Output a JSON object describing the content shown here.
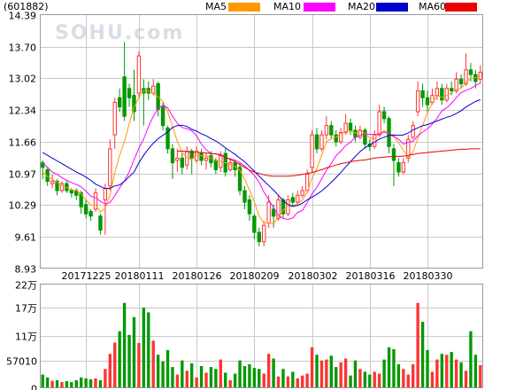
{
  "header": {
    "symbol": "(601882)",
    "legend": [
      {
        "label": "MA5",
        "color": "#ff9900"
      },
      {
        "label": "MA10",
        "color": "#ff00ff"
      },
      {
        "label": "MA20",
        "color": "#0000cc"
      },
      {
        "label": "MA60",
        "color": "#ee0000"
      }
    ]
  },
  "watermark": "SOHU.com",
  "colors": {
    "up": "#ff3333",
    "down": "#009900"
  },
  "chart_data": [
    {
      "type": "candlestick",
      "title": "",
      "ylim": [
        8.93,
        14.39
      ],
      "y_ticks": [
        "14.39",
        "13.70",
        "13.02",
        "12.34",
        "11.66",
        "10.97",
        "10.29",
        "9.61",
        "8.93"
      ],
      "x_ticks": [
        "20171225",
        "20180111",
        "20180126",
        "20180209",
        "20180302",
        "20180316",
        "20180330"
      ],
      "x_tick_index": [
        9,
        20,
        32,
        44,
        56,
        68,
        80
      ],
      "candles": [
        [
          11.2,
          11.1,
          11.25,
          10.85
        ],
        [
          11.05,
          10.8,
          11.1,
          10.7
        ],
        [
          10.75,
          10.8,
          10.95,
          10.65
        ],
        [
          10.8,
          10.6,
          10.85,
          10.5
        ],
        [
          10.6,
          10.75,
          10.8,
          10.55
        ],
        [
          10.75,
          10.6,
          10.8,
          10.55
        ],
        [
          10.6,
          10.55,
          10.65,
          10.45
        ],
        [
          10.6,
          10.5,
          10.65,
          10.4
        ],
        [
          10.55,
          10.25,
          10.6,
          10.1
        ],
        [
          10.3,
          10.1,
          10.4,
          10.0
        ],
        [
          10.15,
          10.05,
          10.2,
          9.95
        ],
        [
          10.2,
          10.55,
          10.65,
          10.15
        ],
        [
          10.05,
          9.75,
          10.1,
          9.65
        ],
        [
          10.4,
          10.65,
          10.75,
          9.65
        ],
        [
          10.7,
          11.5,
          11.7,
          10.6
        ],
        [
          11.8,
          12.5,
          12.6,
          11.5
        ],
        [
          12.6,
          12.4,
          12.8,
          12.3
        ],
        [
          13.05,
          12.2,
          13.8,
          12.1
        ],
        [
          12.8,
          12.6,
          12.9,
          12.4
        ],
        [
          12.65,
          12.3,
          13.2,
          12.1
        ],
        [
          12.7,
          13.5,
          13.6,
          12.6
        ],
        [
          12.8,
          12.7,
          13.0,
          12.0
        ],
        [
          12.8,
          12.7,
          12.95,
          12.55
        ],
        [
          12.7,
          12.85,
          13.0,
          12.65
        ],
        [
          12.9,
          12.35,
          12.95,
          12.2
        ],
        [
          12.4,
          12.0,
          12.5,
          11.9
        ],
        [
          11.95,
          11.5,
          12.0,
          11.4
        ],
        [
          11.5,
          11.2,
          11.6,
          10.85
        ],
        [
          11.25,
          11.3,
          11.5,
          11.0
        ],
        [
          11.3,
          11.1,
          11.45,
          10.95
        ],
        [
          11.15,
          11.45,
          11.55,
          11.05
        ],
        [
          11.45,
          11.3,
          11.5,
          10.95
        ],
        [
          11.25,
          11.45,
          11.55,
          11.2
        ],
        [
          11.4,
          11.25,
          11.5,
          11.15
        ],
        [
          11.25,
          11.3,
          11.4,
          11.05
        ],
        [
          11.35,
          11.2,
          11.45,
          11.1
        ],
        [
          11.25,
          11.05,
          11.3,
          10.95
        ],
        [
          11.1,
          11.35,
          11.45,
          11.0
        ],
        [
          11.4,
          11.0,
          11.5,
          10.9
        ],
        [
          11.05,
          11.2,
          11.3,
          11.0
        ],
        [
          11.2,
          11.05,
          11.25,
          10.9
        ],
        [
          11.1,
          10.6,
          11.2,
          10.5
        ],
        [
          10.6,
          10.35,
          10.7,
          10.2
        ],
        [
          10.4,
          10.1,
          10.5,
          9.95
        ],
        [
          10.05,
          9.7,
          10.1,
          9.55
        ],
        [
          9.7,
          9.5,
          9.8,
          9.4
        ],
        [
          9.5,
          9.85,
          9.95,
          9.4
        ],
        [
          9.9,
          10.35,
          10.5,
          9.8
        ],
        [
          10.2,
          10.05,
          10.3,
          9.8
        ],
        [
          10.0,
          10.4,
          10.5,
          9.95
        ],
        [
          10.4,
          10.1,
          10.45,
          10.0
        ],
        [
          10.1,
          10.4,
          10.5,
          10.05
        ],
        [
          10.45,
          10.35,
          10.55,
          10.25
        ],
        [
          10.35,
          10.5,
          10.6,
          10.3
        ],
        [
          10.5,
          10.6,
          10.7,
          10.45
        ],
        [
          10.6,
          10.95,
          11.05,
          10.55
        ],
        [
          11.1,
          11.8,
          11.9,
          11.0
        ],
        [
          11.8,
          11.5,
          11.95,
          11.4
        ],
        [
          11.5,
          11.8,
          11.9,
          11.45
        ],
        [
          11.8,
          12.0,
          12.2,
          11.7
        ],
        [
          12.0,
          11.8,
          12.1,
          11.7
        ],
        [
          11.8,
          11.65,
          11.9,
          11.55
        ],
        [
          11.65,
          11.85,
          11.95,
          11.6
        ],
        [
          11.85,
          12.05,
          12.25,
          11.8
        ],
        [
          12.05,
          11.9,
          12.15,
          11.8
        ],
        [
          11.9,
          11.75,
          12.0,
          11.65
        ],
        [
          11.75,
          11.9,
          12.0,
          11.7
        ],
        [
          11.9,
          11.6,
          11.95,
          11.5
        ],
        [
          11.6,
          11.55,
          11.7,
          11.45
        ],
        [
          11.55,
          11.8,
          11.9,
          11.5
        ],
        [
          11.8,
          12.3,
          12.45,
          11.75
        ],
        [
          12.3,
          12.15,
          12.4,
          12.05
        ],
        [
          12.15,
          11.55,
          12.2,
          11.4
        ],
        [
          11.5,
          11.25,
          11.6,
          10.7
        ],
        [
          11.2,
          11.0,
          11.3,
          10.9
        ],
        [
          11.0,
          11.2,
          11.3,
          10.95
        ],
        [
          11.3,
          11.7,
          11.8,
          11.2
        ],
        [
          11.75,
          12.0,
          12.1,
          11.7
        ],
        [
          12.3,
          12.75,
          12.95,
          12.2
        ],
        [
          12.75,
          12.6,
          12.9,
          12.4
        ],
        [
          12.6,
          12.45,
          12.75,
          12.3
        ],
        [
          12.5,
          12.65,
          12.8,
          12.45
        ],
        [
          12.65,
          12.8,
          12.95,
          12.55
        ],
        [
          12.8,
          12.55,
          12.9,
          12.45
        ],
        [
          12.55,
          12.8,
          12.9,
          12.5
        ],
        [
          12.8,
          12.75,
          12.95,
          12.65
        ],
        [
          12.75,
          13.0,
          13.15,
          12.7
        ],
        [
          13.0,
          12.9,
          13.1,
          12.8
        ],
        [
          12.9,
          13.2,
          13.55,
          12.85
        ],
        [
          13.2,
          13.1,
          13.35,
          12.95
        ],
        [
          13.1,
          12.95,
          13.2,
          12.8
        ],
        [
          13.0,
          13.15,
          13.3,
          12.9
        ]
      ],
      "ma5": [
        11.0,
        10.9,
        10.85,
        10.78,
        10.71,
        10.66,
        10.62,
        10.6,
        10.53,
        10.4,
        10.29,
        10.29,
        10.14,
        10.22,
        10.5,
        10.99,
        11.36,
        11.66,
        12.04,
        12.4,
        12.6,
        12.76,
        12.74,
        12.7,
        12.62,
        12.52,
        12.29,
        11.98,
        11.66,
        11.42,
        11.31,
        11.27,
        11.36,
        11.35,
        11.35,
        11.3,
        11.25,
        11.23,
        11.2,
        11.16,
        11.12,
        11.04,
        10.84,
        10.61,
        10.36,
        10.05,
        9.9,
        9.9,
        9.89,
        10.03,
        10.18,
        10.27,
        10.26,
        10.32,
        10.4,
        10.56,
        10.87,
        11.07,
        11.36,
        11.65,
        11.72,
        11.75,
        11.83,
        11.87,
        11.89,
        11.84,
        11.89,
        11.84,
        11.73,
        11.72,
        11.84,
        11.89,
        11.83,
        11.78,
        11.63,
        11.47,
        11.33,
        11.43,
        11.73,
        12.01,
        12.28,
        12.49,
        12.65,
        12.61,
        12.65,
        12.71,
        12.78,
        12.8,
        12.93,
        13.02,
        13.03,
        13.07
      ],
      "ma10": [
        11.2,
        11.1,
        11.0,
        10.95,
        10.88,
        10.82,
        10.77,
        10.73,
        10.68,
        10.59,
        10.48,
        10.45,
        10.37,
        10.31,
        10.34,
        10.49,
        10.66,
        10.81,
        11.0,
        11.27,
        11.51,
        11.71,
        11.98,
        12.2,
        12.37,
        12.44,
        12.38,
        12.2,
        12.05,
        11.96,
        11.93,
        11.89,
        11.78,
        11.6,
        11.48,
        11.39,
        11.39,
        11.38,
        11.32,
        11.28,
        11.26,
        11.2,
        11.13,
        11.03,
        10.93,
        10.78,
        10.57,
        10.4,
        10.23,
        10.07,
        10.0,
        9.98,
        10.01,
        10.13,
        10.17,
        10.34,
        10.53,
        10.67,
        10.85,
        11.04,
        11.18,
        11.35,
        11.45,
        11.57,
        11.64,
        11.75,
        11.79,
        11.82,
        11.81,
        11.81,
        11.81,
        11.86,
        11.83,
        11.76,
        11.71,
        11.6,
        11.64,
        11.66,
        11.78,
        11.86,
        11.93,
        12.03,
        12.16,
        12.32,
        12.38,
        12.48,
        12.6,
        12.71,
        12.76,
        12.8,
        12.86,
        12.92
      ],
      "ma20": [
        11.42,
        11.36,
        11.3,
        11.24,
        11.18,
        11.12,
        11.06,
        11.0,
        10.95,
        10.89,
        10.82,
        10.74,
        10.69,
        10.64,
        10.65,
        10.7,
        10.72,
        10.8,
        10.9,
        11.0,
        11.2,
        11.36,
        11.5,
        11.62,
        11.72,
        11.79,
        11.86,
        11.96,
        12.0,
        12.01,
        11.98,
        11.92,
        11.88,
        11.82,
        11.78,
        11.72,
        11.67,
        11.6,
        11.52,
        11.45,
        11.38,
        11.3,
        11.22,
        11.12,
        11.02,
        10.91,
        10.81,
        10.71,
        10.61,
        10.5,
        10.38,
        10.3,
        10.26,
        10.28,
        10.33,
        10.4,
        10.46,
        10.52,
        10.59,
        10.68,
        10.78,
        10.88,
        10.99,
        11.11,
        11.22,
        11.34,
        11.44,
        11.52,
        11.59,
        11.64,
        11.71,
        11.75,
        11.79,
        11.8,
        11.79,
        11.8,
        11.84,
        11.91,
        11.95,
        12.0,
        12.02,
        12.06,
        12.1,
        12.14,
        12.18,
        12.21,
        12.26,
        12.32,
        12.4,
        12.46,
        12.52,
        12.56
      ],
      "ma60": [
        null,
        null,
        null,
        null,
        null,
        null,
        null,
        null,
        null,
        null,
        null,
        null,
        null,
        null,
        null,
        null,
        null,
        null,
        null,
        null,
        null,
        null,
        null,
        null,
        null,
        null,
        null,
        null,
        11.45,
        11.45,
        11.44,
        11.43,
        11.42,
        11.42,
        11.41,
        11.4,
        11.39,
        11.36,
        11.32,
        11.27,
        11.22,
        11.16,
        11.1,
        11.04,
        11.0,
        10.97,
        10.94,
        10.92,
        10.91,
        10.91,
        10.91,
        10.91,
        10.92,
        10.93,
        10.95,
        10.97,
        10.99,
        11.02,
        11.05,
        11.09,
        11.12,
        11.15,
        11.18,
        11.2,
        11.22,
        11.24,
        11.25,
        11.26,
        11.28,
        11.3,
        11.31,
        11.32,
        11.33,
        11.33,
        11.34,
        11.34,
        11.36,
        11.38,
        11.4,
        11.41,
        11.42,
        11.43,
        11.44,
        11.45,
        11.46,
        11.47,
        11.48,
        11.49,
        11.49,
        11.5,
        11.5,
        11.5
      ]
    },
    {
      "type": "bar",
      "title": "",
      "ylim": [
        0,
        220000
      ],
      "y_ticks": [
        {
          "label": "22万",
          "value": 220000
        },
        {
          "label": "17万",
          "value": 170000
        },
        {
          "label": "11万",
          "value": 110000
        },
        {
          "label": "57010",
          "value": 57010
        },
        {
          "label": "0",
          "value": 0
        }
      ],
      "values": [
        28000,
        22000,
        15000,
        16000,
        12000,
        14000,
        12000,
        16000,
        22000,
        20000,
        18000,
        20000,
        16000,
        40000,
        72000,
        96000,
        120000,
        180000,
        112000,
        150000,
        95000,
        170000,
        160000,
        100000,
        70000,
        56000,
        80000,
        44000,
        28000,
        58000,
        36000,
        52000,
        22000,
        46000,
        32000,
        44000,
        40000,
        60000,
        32000,
        16000,
        30000,
        58000,
        46000,
        50000,
        42000,
        40000,
        30000,
        72000,
        62000,
        24000,
        40000,
        24000,
        34000,
        20000,
        26000,
        30000,
        86000,
        70000,
        58000,
        60000,
        68000,
        44000,
        54000,
        62000,
        26000,
        58000,
        40000,
        34000,
        28000,
        34000,
        30000,
        60000,
        86000,
        82000,
        50000,
        40000,
        28000,
        50000,
        180000,
        140000,
        80000,
        34000,
        60000,
        72000,
        70000,
        76000,
        60000,
        54000,
        36000,
        120000,
        70000,
        48000
      ]
    }
  ]
}
